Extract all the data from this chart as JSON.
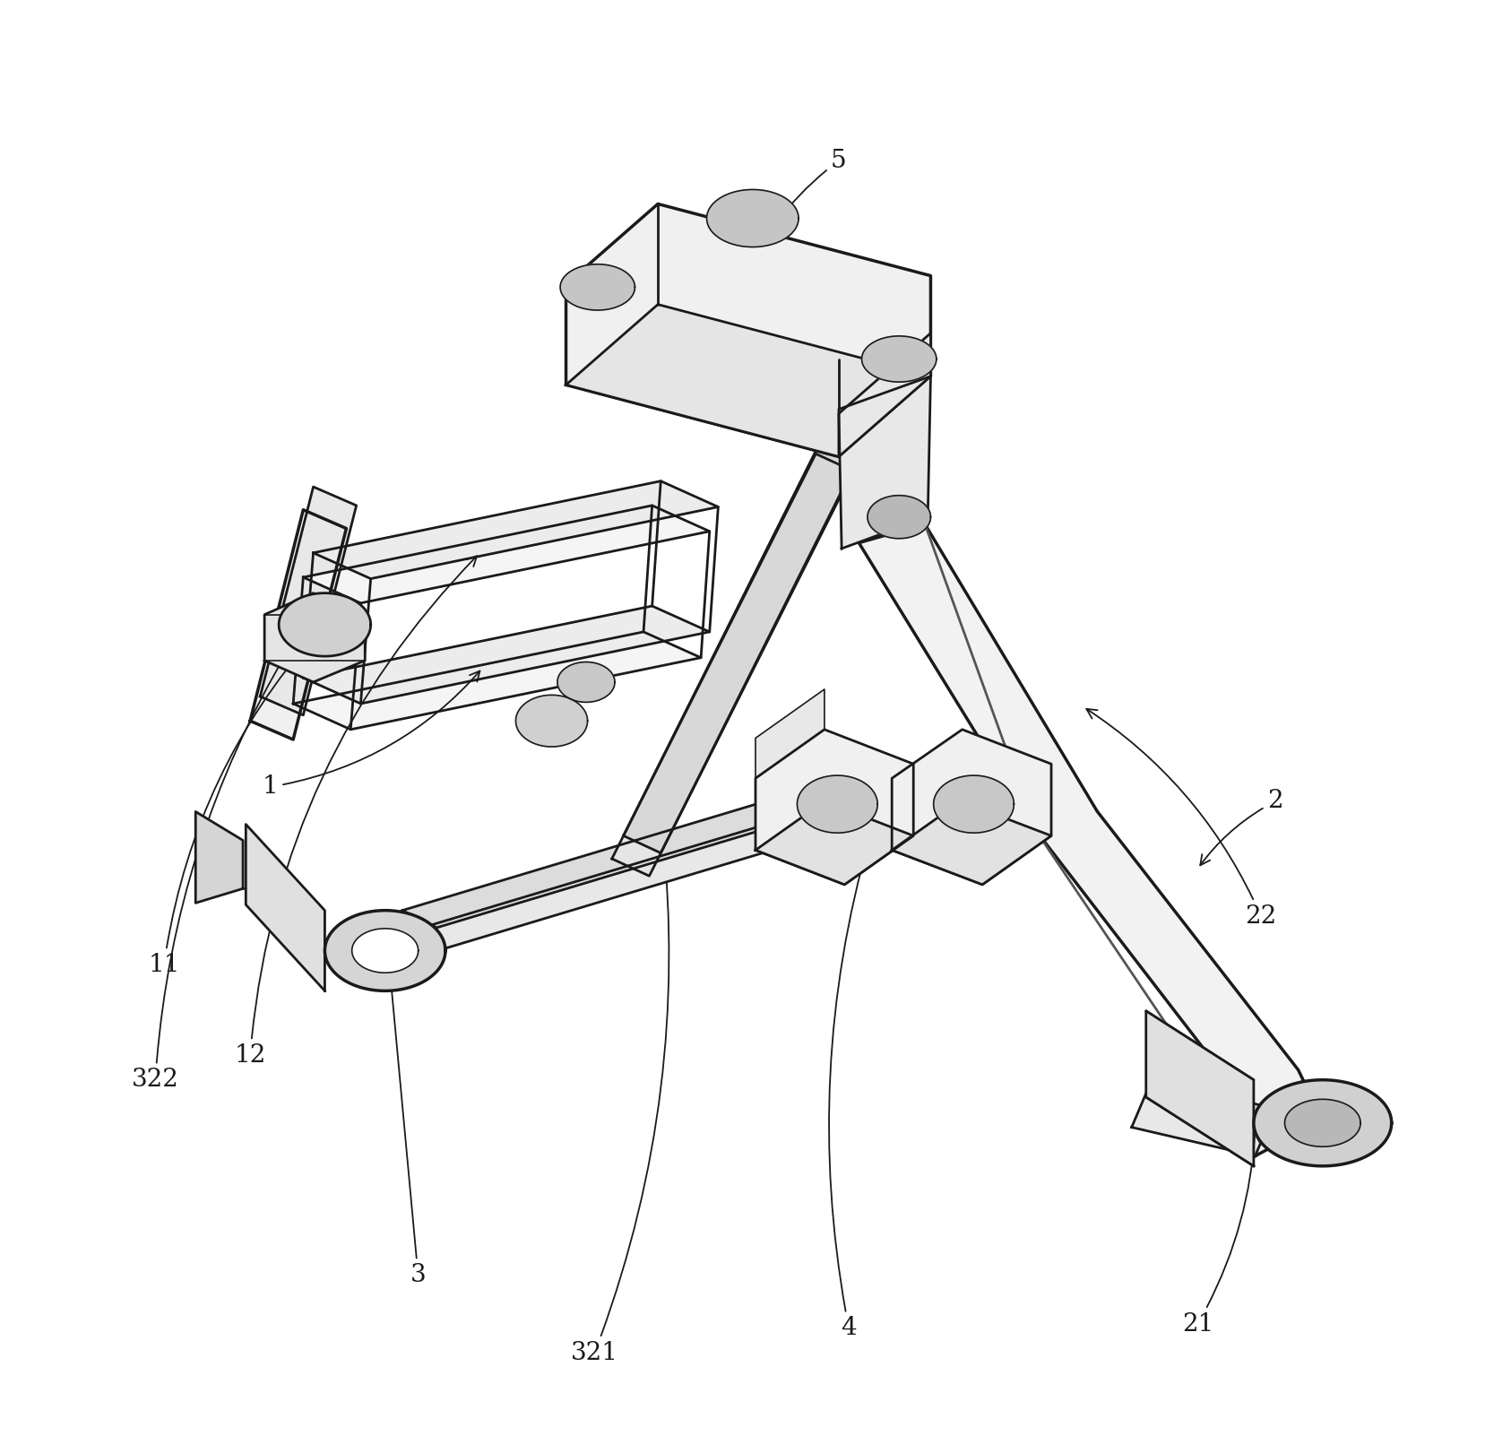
{
  "bg_color": "white",
  "line_color": "#1a1a1a",
  "figsize": [
    16.86,
    16.02
  ],
  "dpi": 100,
  "lw_main": 2.0,
  "lw_thin": 1.2,
  "lw_thick": 2.5
}
